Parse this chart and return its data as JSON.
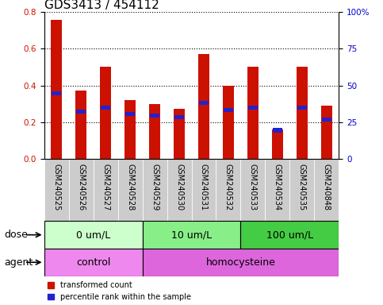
{
  "title": "GDS3413 / 454112",
  "samples": [
    "GSM240525",
    "GSM240526",
    "GSM240527",
    "GSM240528",
    "GSM240529",
    "GSM240530",
    "GSM240531",
    "GSM240532",
    "GSM240533",
    "GSM240534",
    "GSM240535",
    "GSM240848"
  ],
  "red_values": [
    0.76,
    0.37,
    0.5,
    0.32,
    0.3,
    0.27,
    0.57,
    0.4,
    0.5,
    0.16,
    0.5,
    0.29
  ],
  "blue_values": [
    0.355,
    0.255,
    0.28,
    0.245,
    0.235,
    0.225,
    0.305,
    0.265,
    0.28,
    0.155,
    0.28,
    0.215
  ],
  "ylim_left": [
    0,
    0.8
  ],
  "ylim_right": [
    0,
    100
  ],
  "yticks_left": [
    0,
    0.2,
    0.4,
    0.6,
    0.8
  ],
  "yticks_right": [
    0,
    25,
    50,
    75,
    100
  ],
  "dose_groups": [
    {
      "label": "0 um/L",
      "start": 0,
      "end": 4,
      "color": "#ccffcc"
    },
    {
      "label": "10 um/L",
      "start": 4,
      "end": 8,
      "color": "#88ee88"
    },
    {
      "label": "100 um/L",
      "start": 8,
      "end": 12,
      "color": "#44cc44"
    }
  ],
  "agent_groups": [
    {
      "label": "control",
      "start": 0,
      "end": 4,
      "color": "#ee88ee"
    },
    {
      "label": "homocysteine",
      "start": 4,
      "end": 12,
      "color": "#dd66dd"
    }
  ],
  "red_color": "#cc1100",
  "blue_color": "#2222cc",
  "bar_bg_color": "#cccccc",
  "bar_width": 0.45,
  "legend_red": "transformed count",
  "legend_blue": "percentile rank within the sample",
  "left_label_color": "#cc1100",
  "right_label_color": "#0000cc",
  "title_fontsize": 11,
  "tick_fontsize": 7.5,
  "label_fontsize": 8,
  "dose_agent_fontsize": 9,
  "xticklabel_fontsize": 7
}
